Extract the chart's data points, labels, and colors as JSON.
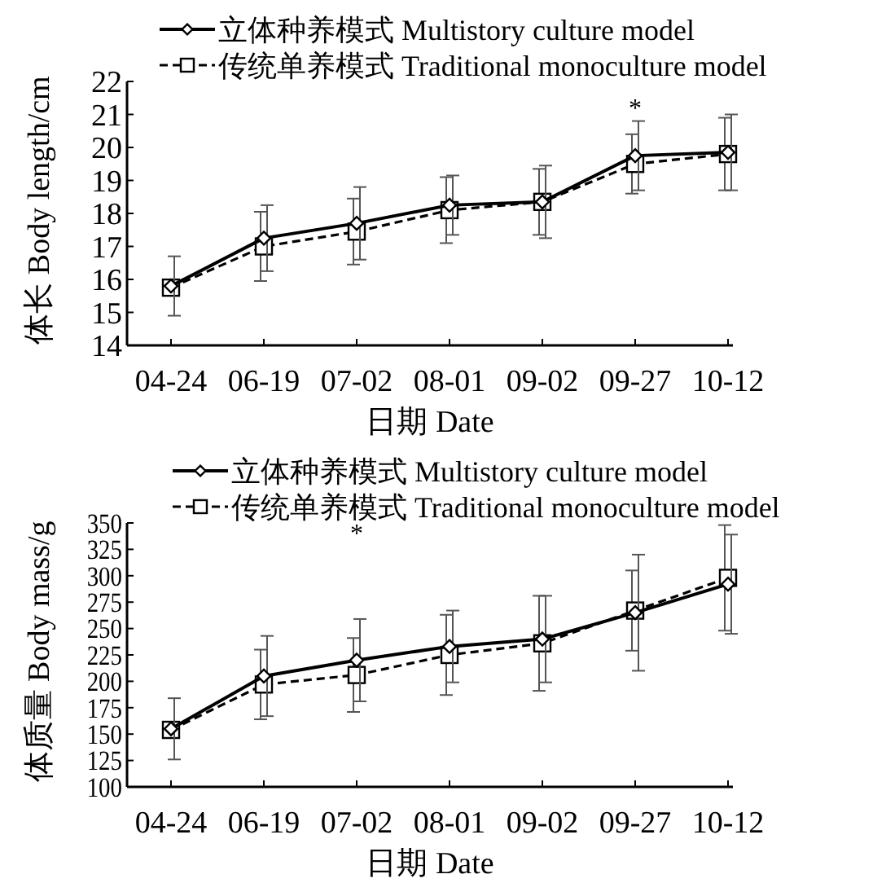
{
  "chart_data": [
    {
      "type": "line",
      "xlabel": "日期 Date",
      "ylabel": "体长 Body length/cm",
      "categories": [
        "04-24",
        "06-19",
        "07-02",
        "08-01",
        "09-02",
        "09-27",
        "10-12"
      ],
      "ylim": [
        14,
        22
      ],
      "yticks": [
        14,
        15,
        16,
        17,
        18,
        19,
        20,
        21,
        22
      ],
      "legend": "top",
      "grid": false,
      "series": [
        {
          "name": "立体种养模式 Multistory culture model",
          "color": "#000000",
          "marker": "diamond",
          "line_style": "solid",
          "values": [
            15.8,
            17.25,
            17.7,
            18.25,
            18.35,
            19.75,
            19.85
          ],
          "errors": [
            0.9,
            1.0,
            1.1,
            0.9,
            1.1,
            1.05,
            1.15
          ]
        },
        {
          "name": "传统单养模式 Traditional monoculture model",
          "color": "#000000",
          "marker": "square",
          "line_style": "dashed",
          "values": [
            15.75,
            17.0,
            17.45,
            18.1,
            18.35,
            19.5,
            19.8
          ],
          "errors": [
            null,
            1.05,
            1.0,
            1.0,
            1.0,
            0.9,
            1.1
          ]
        }
      ],
      "annotations": [
        "*"
      ]
    },
    {
      "type": "line",
      "xlabel": "日期 Date",
      "ylabel": "体质量 Body mass/g",
      "categories": [
        "04-24",
        "06-19",
        "07-02",
        "08-01",
        "09-02",
        "09-27",
        "10-12"
      ],
      "ylim": [
        100,
        350
      ],
      "yticks": [
        100,
        125,
        150,
        175,
        200,
        225,
        250,
        275,
        300,
        325,
        350
      ],
      "legend": "top",
      "grid": false,
      "series": [
        {
          "name": "立体种养模式 Multistory culture model",
          "color": "#000000",
          "marker": "diamond",
          "line_style": "solid",
          "values": [
            155,
            205,
            220,
            233,
            240,
            265,
            292
          ],
          "errors": [
            29,
            38,
            39,
            34,
            41,
            55,
            47
          ]
        },
        {
          "name": "传统单养模式 Traditional monoculture model",
          "color": "#000000",
          "marker": "square",
          "line_style": "dashed",
          "values": [
            154,
            197,
            206,
            225,
            236,
            267,
            298
          ],
          "errors": [
            null,
            33,
            35,
            38,
            45,
            38,
            50
          ]
        }
      ],
      "annotations": [
        "*"
      ]
    }
  ]
}
